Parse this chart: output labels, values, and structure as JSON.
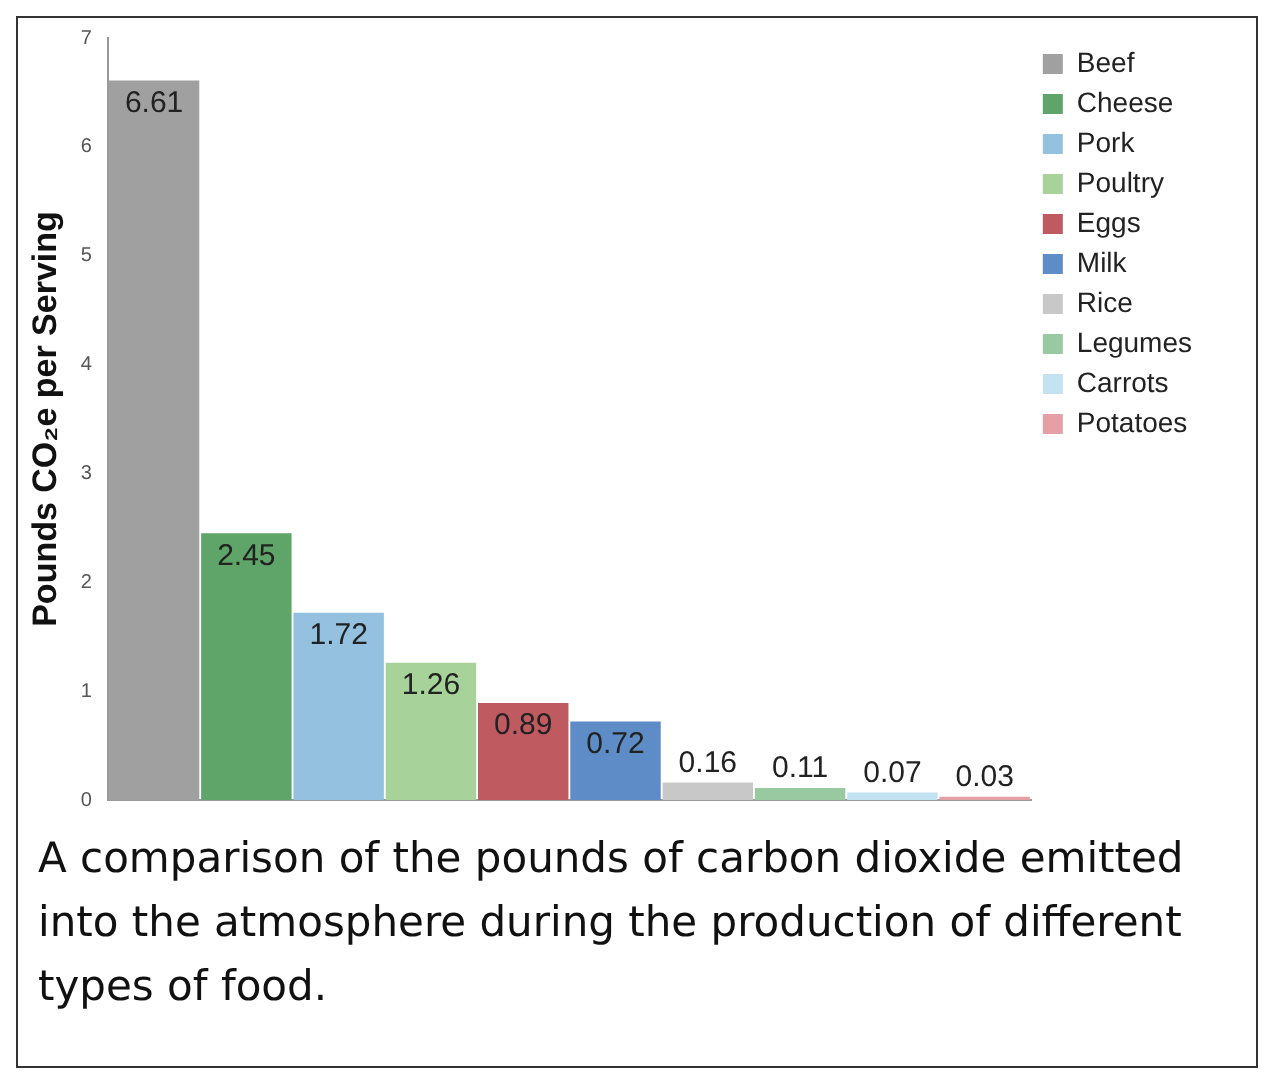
{
  "chart_data": {
    "type": "bar",
    "ylabel": "Pounds CO₂e per Serving",
    "categories": [
      null,
      null,
      null,
      null,
      null,
      null,
      null,
      null,
      null,
      null
    ],
    "series": [
      {
        "name": "Beef",
        "color": "#a0a0a0",
        "values": [
          6.61,
          null,
          null,
          null,
          null,
          null,
          null,
          null,
          null,
          null
        ]
      },
      {
        "name": "Cheese",
        "color": "#5fa468",
        "values": [
          null,
          2.45,
          null,
          null,
          null,
          null,
          null,
          null,
          null,
          null
        ]
      },
      {
        "name": "Pork",
        "color": "#93c1df",
        "values": [
          null,
          null,
          1.72,
          null,
          null,
          null,
          null,
          null,
          null,
          null
        ]
      },
      {
        "name": "Poultry",
        "color": "#a7d39a",
        "values": [
          null,
          null,
          null,
          1.26,
          null,
          null,
          null,
          null,
          null,
          null
        ]
      },
      {
        "name": "Eggs",
        "color": "#c05a61",
        "values": [
          null,
          null,
          null,
          null,
          0.89,
          null,
          null,
          null,
          null,
          null
        ]
      },
      {
        "name": "Milk",
        "color": "#5e8cc6",
        "values": [
          null,
          null,
          null,
          null,
          null,
          0.72,
          null,
          null,
          null,
          null
        ]
      },
      {
        "name": "Rice",
        "color": "#c8c8c8",
        "values": [
          null,
          null,
          null,
          null,
          null,
          null,
          0.16,
          null,
          null,
          null
        ]
      },
      {
        "name": "Legumes",
        "color": "#98c9a0",
        "values": [
          null,
          null,
          null,
          null,
          null,
          null,
          null,
          0.11,
          null,
          null
        ]
      },
      {
        "name": "Carrots",
        "color": "#c3e2f2",
        "values": [
          null,
          null,
          null,
          null,
          null,
          null,
          null,
          null,
          0.07,
          null
        ]
      },
      {
        "name": "Potatoes",
        "color": "#e4a0a4",
        "values": [
          null,
          null,
          null,
          null,
          null,
          null,
          null,
          null,
          null,
          0.03
        ]
      }
    ],
    "ylim": [
      0,
      7
    ],
    "yticks": [
      0,
      1,
      2,
      3,
      4,
      5,
      6,
      7
    ],
    "data_labels": true,
    "legend": "top right",
    "annotations": [
      "A comparison of the pounds of carbon dioxide emitted into the atmosphere during the production of different types of food."
    ]
  }
}
